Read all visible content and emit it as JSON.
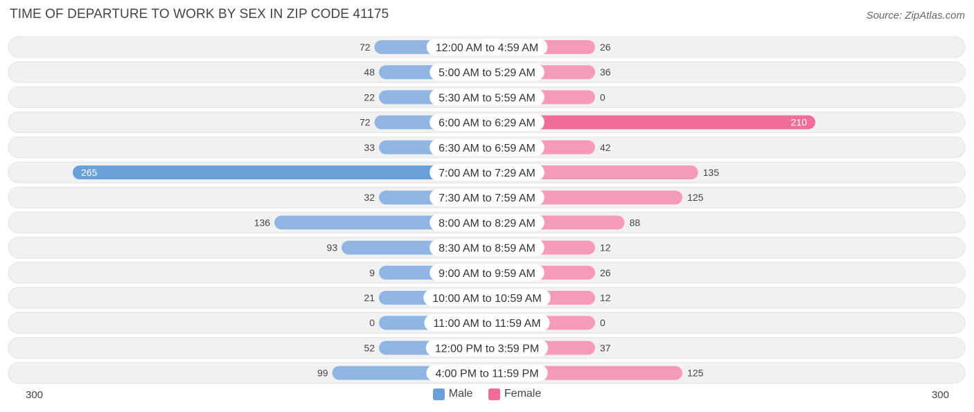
{
  "title": "TIME OF DEPARTURE TO WORK BY SEX IN ZIP CODE 41175",
  "source": "Source: ZipAtlas.com",
  "colors": {
    "male": "#8fb6e3",
    "male_strong": "#6aa0da",
    "female": "#f59ab8",
    "female_strong": "#ef6d97",
    "row_bg": "#f1f1f1"
  },
  "legend": {
    "male": "Male",
    "female": "Female"
  },
  "axis": {
    "left_label": "300",
    "right_label": "300"
  },
  "chart_data": {
    "type": "bar",
    "orientation": "horizontal-diverging",
    "title": "TIME OF DEPARTURE TO WORK BY SEX IN ZIP CODE 41175",
    "xlim": [
      -300,
      300
    ],
    "categories": [
      "12:00 AM to 4:59 AM",
      "5:00 AM to 5:29 AM",
      "5:30 AM to 5:59 AM",
      "6:00 AM to 6:29 AM",
      "6:30 AM to 6:59 AM",
      "7:00 AM to 7:29 AM",
      "7:30 AM to 7:59 AM",
      "8:00 AM to 8:29 AM",
      "8:30 AM to 8:59 AM",
      "9:00 AM to 9:59 AM",
      "10:00 AM to 10:59 AM",
      "11:00 AM to 11:59 AM",
      "12:00 PM to 3:59 PM",
      "4:00 PM to 11:59 PM"
    ],
    "series": [
      {
        "name": "Male",
        "values": [
          72,
          48,
          22,
          72,
          33,
          265,
          32,
          136,
          93,
          9,
          21,
          0,
          52,
          99
        ]
      },
      {
        "name": "Female",
        "values": [
          26,
          36,
          0,
          210,
          42,
          135,
          125,
          88,
          12,
          26,
          12,
          0,
          37,
          125
        ]
      }
    ],
    "legend_position": "bottom-center",
    "grid": false
  }
}
